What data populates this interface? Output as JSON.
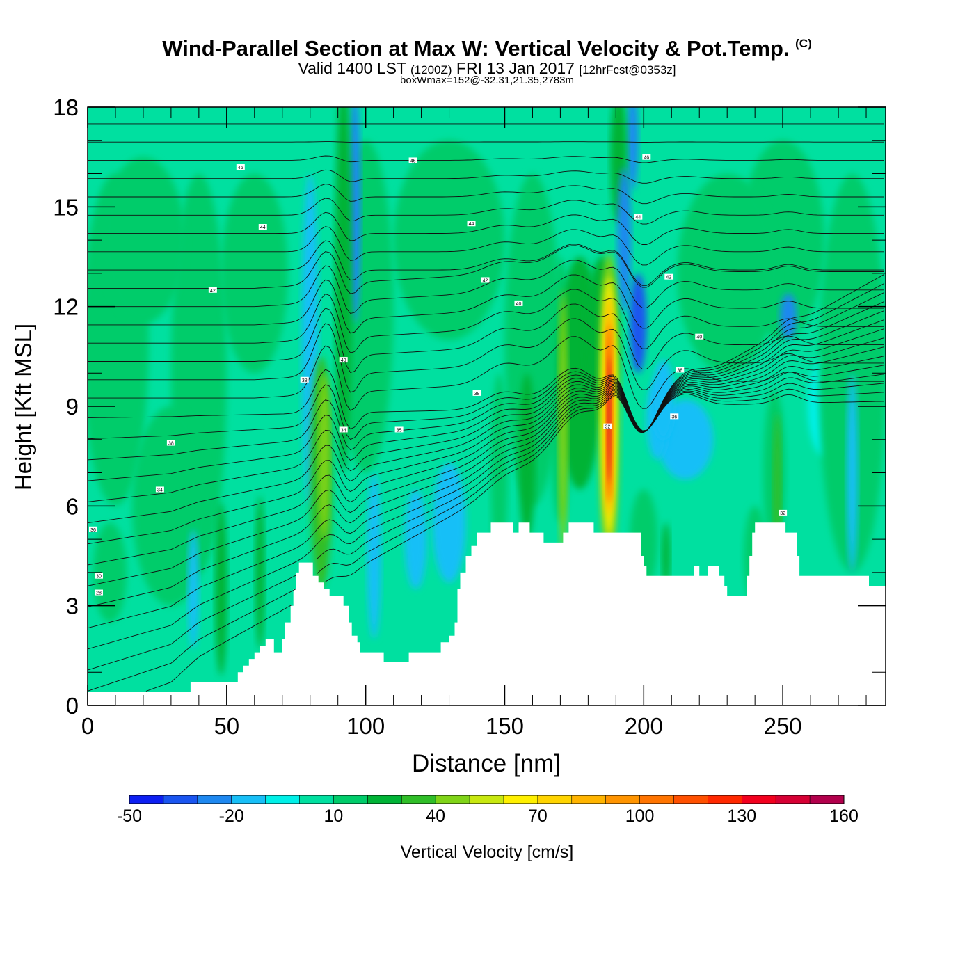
{
  "title": {
    "main": "Wind-Parallel Section at Max W: Vertical Velocity & Pot.Temp.",
    "copyright": "(C)",
    "valid_a": "Valid 1400 LST",
    "valid_b": "(1200Z)",
    "valid_c": "FRI 13 Jan 2017",
    "valid_d": "[12hrFcst@0353z]",
    "box": "boxWmax=152@-32.31,21.35,2783m"
  },
  "chart_data": {
    "type": "heatmap",
    "title": "Wind-Parallel Section at Max W: Vertical Velocity & Pot.Temp.",
    "xlabel": "Distance [nm]",
    "ylabel": "Height [Kft MSL]",
    "xlim": [
      0,
      287
    ],
    "ylim": [
      0,
      18
    ],
    "x_ticks": [
      0,
      50,
      100,
      150,
      200,
      250
    ],
    "y_ticks": [
      0,
      3,
      6,
      9,
      12,
      15,
      18
    ],
    "colorbar": {
      "label": "Vertical Velocity [cm/s]",
      "levels": [
        -50,
        -40,
        -30,
        -20,
        -10,
        0,
        10,
        20,
        30,
        40,
        50,
        60,
        70,
        80,
        90,
        100,
        110,
        120,
        130,
        140,
        150,
        160
      ],
      "tick_labels": [
        "-50",
        "-20",
        "10",
        "40",
        "70",
        "100",
        "130",
        "160"
      ],
      "colors": [
        "#0d1ff2",
        "#1a55f0",
        "#1e88f0",
        "#18bff7",
        "#00f0e8",
        "#00e0a0",
        "#00cc6a",
        "#00b336",
        "#30be28",
        "#80d418",
        "#c8e810",
        "#fff000",
        "#ffd400",
        "#ffb400",
        "#ff9400",
        "#ff7400",
        "#ff5000",
        "#ff2800",
        "#f2001e",
        "#d60034",
        "#b2004c"
      ]
    },
    "terrain_kft": [
      [
        0,
        0.4
      ],
      [
        36,
        0.4
      ],
      [
        37,
        0.7
      ],
      [
        53,
        0.7
      ],
      [
        54,
        1.0
      ],
      [
        56,
        1.2
      ],
      [
        58,
        1.4
      ],
      [
        60,
        1.6
      ],
      [
        62,
        1.8
      ],
      [
        64,
        2.0
      ],
      [
        67,
        1.6
      ],
      [
        70,
        2.0
      ],
      [
        71,
        2.5
      ],
      [
        73,
        3.0
      ],
      [
        74,
        3.5
      ],
      [
        75,
        4.0
      ],
      [
        76,
        4.3
      ],
      [
        80,
        4.3
      ],
      [
        81,
        3.9
      ],
      [
        83,
        3.7
      ],
      [
        85,
        3.5
      ],
      [
        87,
        3.3
      ],
      [
        91,
        3.3
      ],
      [
        92,
        3.0
      ],
      [
        94,
        2.5
      ],
      [
        95,
        2.1
      ],
      [
        97,
        1.9
      ],
      [
        98,
        1.6
      ],
      [
        106,
        1.6
      ],
      [
        106.5,
        1.3
      ],
      [
        115,
        1.3
      ],
      [
        115.5,
        1.6
      ],
      [
        126,
        1.6
      ],
      [
        127,
        1.9
      ],
      [
        130,
        2.1
      ],
      [
        132,
        2.5
      ],
      [
        133,
        3.5
      ],
      [
        134,
        4.0
      ],
      [
        136,
        4.5
      ],
      [
        138,
        4.8
      ],
      [
        140,
        5.2
      ],
      [
        144,
        5.2
      ],
      [
        145,
        5.5
      ],
      [
        152,
        5.5
      ],
      [
        153,
        5.2
      ],
      [
        155,
        5.5
      ],
      [
        158,
        5.5
      ],
      [
        159,
        5.2
      ],
      [
        163,
        5.2
      ],
      [
        164,
        4.9
      ],
      [
        170,
        4.9
      ],
      [
        171,
        5.2
      ],
      [
        173,
        5.5
      ],
      [
        181,
        5.5
      ],
      [
        182,
        5.2
      ],
      [
        198,
        5.2
      ],
      [
        199,
        4.5
      ],
      [
        200,
        4.2
      ],
      [
        201,
        3.9
      ],
      [
        217,
        3.9
      ],
      [
        218,
        4.2
      ],
      [
        219,
        4.2
      ],
      [
        220,
        3.9
      ],
      [
        222,
        3.9
      ],
      [
        223,
        4.2
      ],
      [
        226,
        4.2
      ],
      [
        227,
        3.9
      ],
      [
        229,
        3.6
      ],
      [
        230,
        3.3
      ],
      [
        236,
        3.3
      ],
      [
        237,
        3.9
      ],
      [
        238,
        4.5
      ],
      [
        239,
        5.2
      ],
      [
        240,
        5.5
      ],
      [
        250,
        5.5
      ],
      [
        251,
        5.2
      ],
      [
        254,
        5.2
      ],
      [
        255,
        4.5
      ],
      [
        256,
        3.9
      ],
      [
        280,
        3.9
      ],
      [
        281,
        3.6
      ],
      [
        287,
        3.6
      ]
    ],
    "theta_contour_labels": [
      {
        "x": 55,
        "y": 16.2,
        "text": "46"
      },
      {
        "x": 117,
        "y": 16.4,
        "text": "46"
      },
      {
        "x": 201,
        "y": 16.5,
        "text": "46"
      },
      {
        "x": 63,
        "y": 14.4,
        "text": "44"
      },
      {
        "x": 138,
        "y": 14.5,
        "text": "44"
      },
      {
        "x": 198,
        "y": 14.7,
        "text": "44"
      },
      {
        "x": 45,
        "y": 12.5,
        "text": "42"
      },
      {
        "x": 143,
        "y": 12.8,
        "text": "42"
      },
      {
        "x": 209,
        "y": 12.9,
        "text": "42"
      },
      {
        "x": 155,
        "y": 12.1,
        "text": "40"
      },
      {
        "x": 220,
        "y": 11.1,
        "text": "40"
      },
      {
        "x": 92,
        "y": 10.4,
        "text": "40"
      },
      {
        "x": 78,
        "y": 9.8,
        "text": "38"
      },
      {
        "x": 140,
        "y": 9.4,
        "text": "38"
      },
      {
        "x": 213,
        "y": 10.1,
        "text": "38"
      },
      {
        "x": 92,
        "y": 8.3,
        "text": "34"
      },
      {
        "x": 112,
        "y": 8.3,
        "text": "35"
      },
      {
        "x": 211,
        "y": 8.7,
        "text": "36"
      },
      {
        "x": 30,
        "y": 7.9,
        "text": "38"
      },
      {
        "x": 26,
        "y": 6.5,
        "text": "34"
      },
      {
        "x": 2,
        "y": 5.3,
        "text": "36"
      },
      {
        "x": 4,
        "y": 3.9,
        "text": "30"
      },
      {
        "x": 4,
        "y": 3.4,
        "text": "28"
      },
      {
        "x": 187,
        "y": 8.4,
        "text": "32"
      },
      {
        "x": 250,
        "y": 5.8,
        "text": "32"
      }
    ]
  }
}
